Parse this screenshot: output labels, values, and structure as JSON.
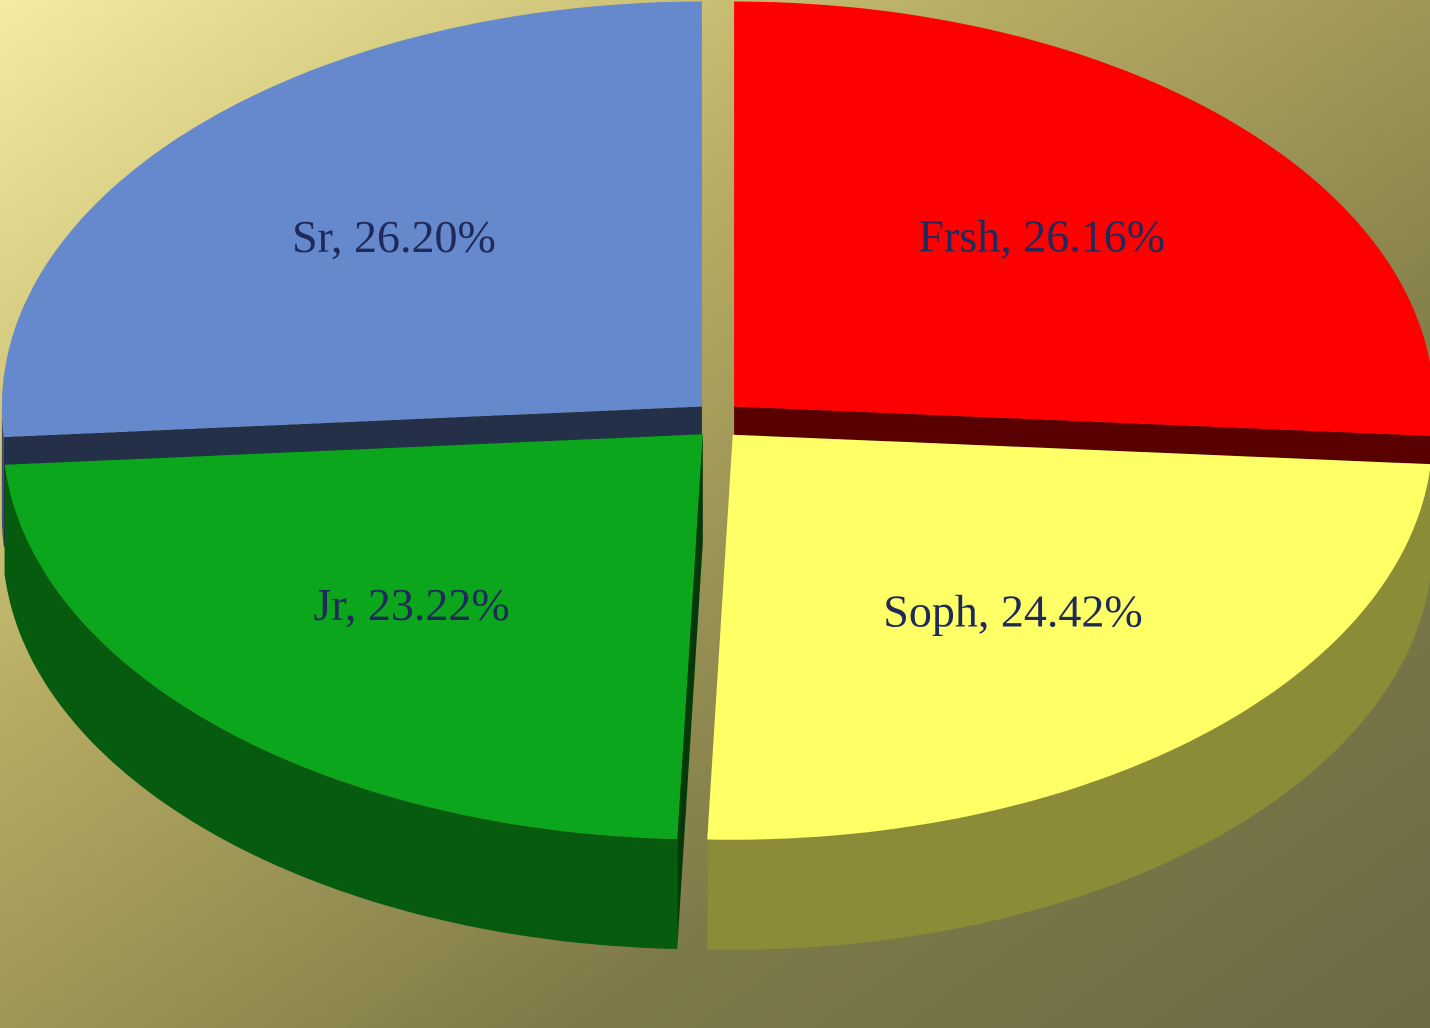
{
  "chart_data": {
    "type": "pie",
    "values": [
      26.16,
      24.42,
      23.22,
      26.2
    ],
    "value_labels": [
      "Frsh, 26.16%",
      "Soph, 24.42%",
      "Jr, 23.22%",
      "Sr, 26.20%"
    ],
    "colors": [
      "#ff0000",
      "#ffff66",
      "#0ca61c",
      "#6688cc"
    ]
  }
}
